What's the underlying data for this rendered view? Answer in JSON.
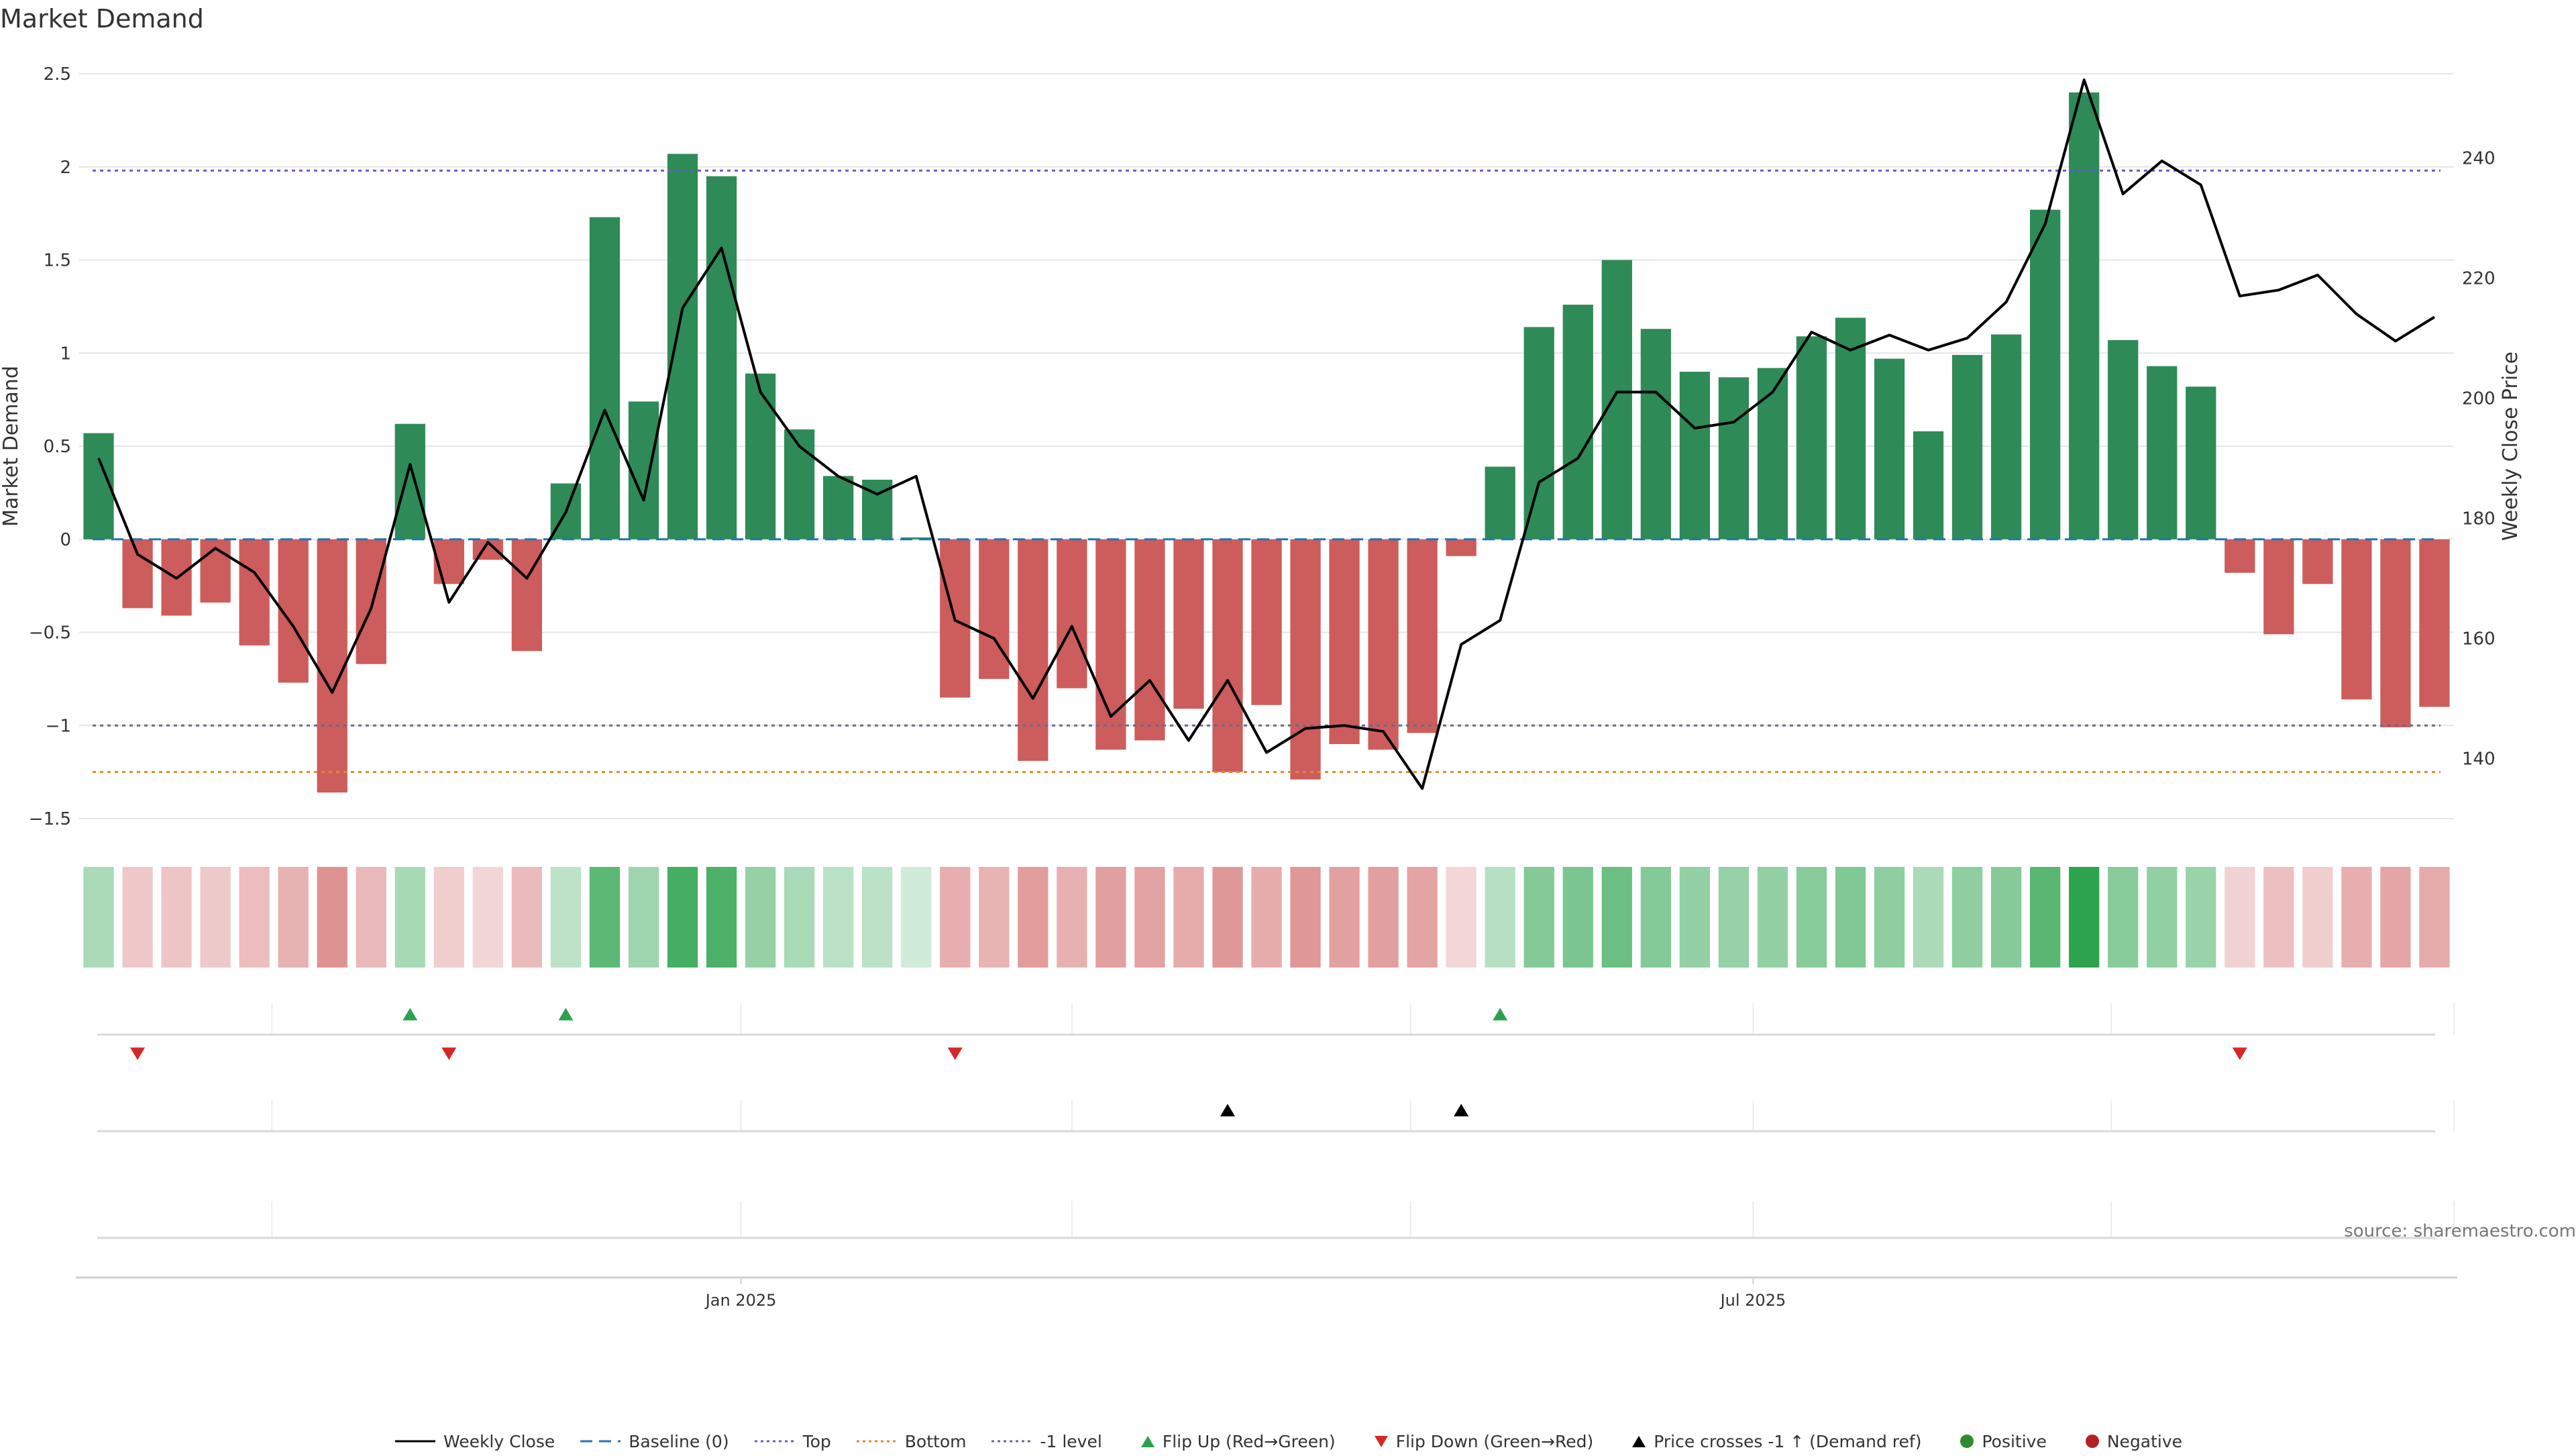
{
  "title": "Market Demand",
  "source_text": "source: sharemaestro.com",
  "colors": {
    "positive": "#2e8b57",
    "negative": "#cd5c5c",
    "price_line": "#000000",
    "baseline": "#1f77b4",
    "top": "#6a5acd",
    "bottom": "#e08a2c",
    "minus1": "#6a6a8a",
    "flip_up": "#2ca050",
    "flip_down": "#d62728",
    "grid": "#e6e6e6"
  },
  "chart_data": {
    "type": "bar",
    "title": "Market Demand",
    "ylabel": "Market Demand",
    "y2label": "Weekly Close Price",
    "ylim": [
      -1.5,
      2.5
    ],
    "y2lim": [
      130,
      254
    ],
    "y_ticks": [
      "2.5",
      "2",
      "1.5",
      "1",
      "0.5",
      "0",
      "−0.5",
      "−1",
      "−1.5"
    ],
    "y_tick_values": [
      2.5,
      2,
      1.5,
      1,
      0.5,
      0,
      -0.5,
      -1,
      -1.5
    ],
    "y2_ticks": [
      "240",
      "220",
      "200",
      "180",
      "160",
      "140"
    ],
    "y2_tick_values": [
      240,
      220,
      200,
      180,
      160,
      140
    ],
    "x_ticks": [
      {
        "label": "Jan 2025",
        "index": 16.5
      },
      {
        "label": "Jul 2025",
        "index": 42.5
      }
    ],
    "levels": {
      "baseline": 0,
      "top": 1.98,
      "bottom": -1.25,
      "minus1": -1.0
    },
    "demand": [
      0.57,
      -0.37,
      -0.41,
      -0.34,
      -0.57,
      -0.77,
      -1.36,
      -0.67,
      0.62,
      -0.24,
      -0.11,
      -0.6,
      0.3,
      1.73,
      0.74,
      2.07,
      1.95,
      0.89,
      0.59,
      0.34,
      0.32,
      0.01,
      -0.85,
      -0.75,
      -1.19,
      -0.8,
      -1.13,
      -1.08,
      -0.91,
      -1.25,
      -0.89,
      -1.29,
      -1.1,
      -1.13,
      -1.04,
      -0.09,
      0.39,
      1.14,
      1.26,
      1.5,
      1.13,
      0.9,
      0.87,
      0.92,
      1.09,
      1.19,
      0.97,
      0.58,
      0.99,
      1.1,
      1.77,
      2.4,
      1.07,
      0.93,
      0.82,
      -0.18,
      -0.51,
      -0.24,
      -0.86,
      -1.01,
      -0.9
    ],
    "weekly_close": [
      190,
      174,
      170,
      175,
      171,
      162,
      151,
      165,
      189,
      166,
      176,
      170,
      181,
      198,
      183,
      215,
      225,
      201,
      192,
      187,
      184,
      187,
      163,
      160,
      150,
      162,
      147,
      153,
      143,
      153,
      141,
      145,
      145.5,
      144.5,
      135,
      159,
      163,
      186,
      190,
      201,
      201,
      195,
      196,
      201,
      211,
      208,
      210.5,
      208,
      210,
      216,
      229,
      253,
      234,
      239.5,
      235.5,
      217,
      218,
      220.5,
      214,
      209.5,
      213.5
    ],
    "heat_strip": [
      0.57,
      -0.37,
      -0.41,
      -0.34,
      -0.57,
      -0.77,
      -1.36,
      -0.67,
      0.62,
      -0.24,
      -0.11,
      -0.6,
      0.3,
      1.73,
      0.74,
      2.07,
      1.95,
      0.89,
      0.59,
      0.34,
      0.32,
      0.01,
      -0.85,
      -0.75,
      -1.19,
      -0.8,
      -1.13,
      -1.08,
      -0.91,
      -1.25,
      -0.89,
      -1.29,
      -1.1,
      -1.13,
      -1.04,
      -0.09,
      0.39,
      1.14,
      1.26,
      1.5,
      1.13,
      0.9,
      0.87,
      0.92,
      1.09,
      1.19,
      0.97,
      0.58,
      0.99,
      1.1,
      1.77,
      2.4,
      1.07,
      0.93,
      0.82,
      -0.18,
      -0.51,
      -0.24,
      -0.86,
      -1.01,
      -0.9
    ],
    "flip_up_indices": [
      8,
      12,
      36
    ],
    "flip_down_indices": [
      1,
      9,
      22,
      55
    ],
    "price_cross_indices": [
      29,
      35
    ]
  },
  "legend": [
    {
      "kind": "line",
      "color": "#000000",
      "dash": "",
      "label": "Weekly Close"
    },
    {
      "kind": "line",
      "color": "#1f77b4",
      "dash": "18,10",
      "label": "Baseline (0)"
    },
    {
      "kind": "line",
      "color": "#6a5acd",
      "dash": "4,5",
      "label": "Top"
    },
    {
      "kind": "line",
      "color": "#e08a2c",
      "dash": "4,5",
      "label": "Bottom"
    },
    {
      "kind": "line",
      "color": "#6a6a8a",
      "dash": "4,5",
      "label": "-1 level"
    },
    {
      "kind": "tri-up",
      "color": "#2ca050",
      "label": "Flip Up (Red→Green)"
    },
    {
      "kind": "tri-down",
      "color": "#d62728",
      "label": "Flip Down (Green→Red)"
    },
    {
      "kind": "tri-up",
      "color": "#000000",
      "label": "Price crosses -1 ↑ (Demand ref)"
    },
    {
      "kind": "dot",
      "color": "#2e8b2e",
      "label": "Positive"
    },
    {
      "kind": "dot",
      "color": "#b22222",
      "label": "Negative"
    }
  ]
}
